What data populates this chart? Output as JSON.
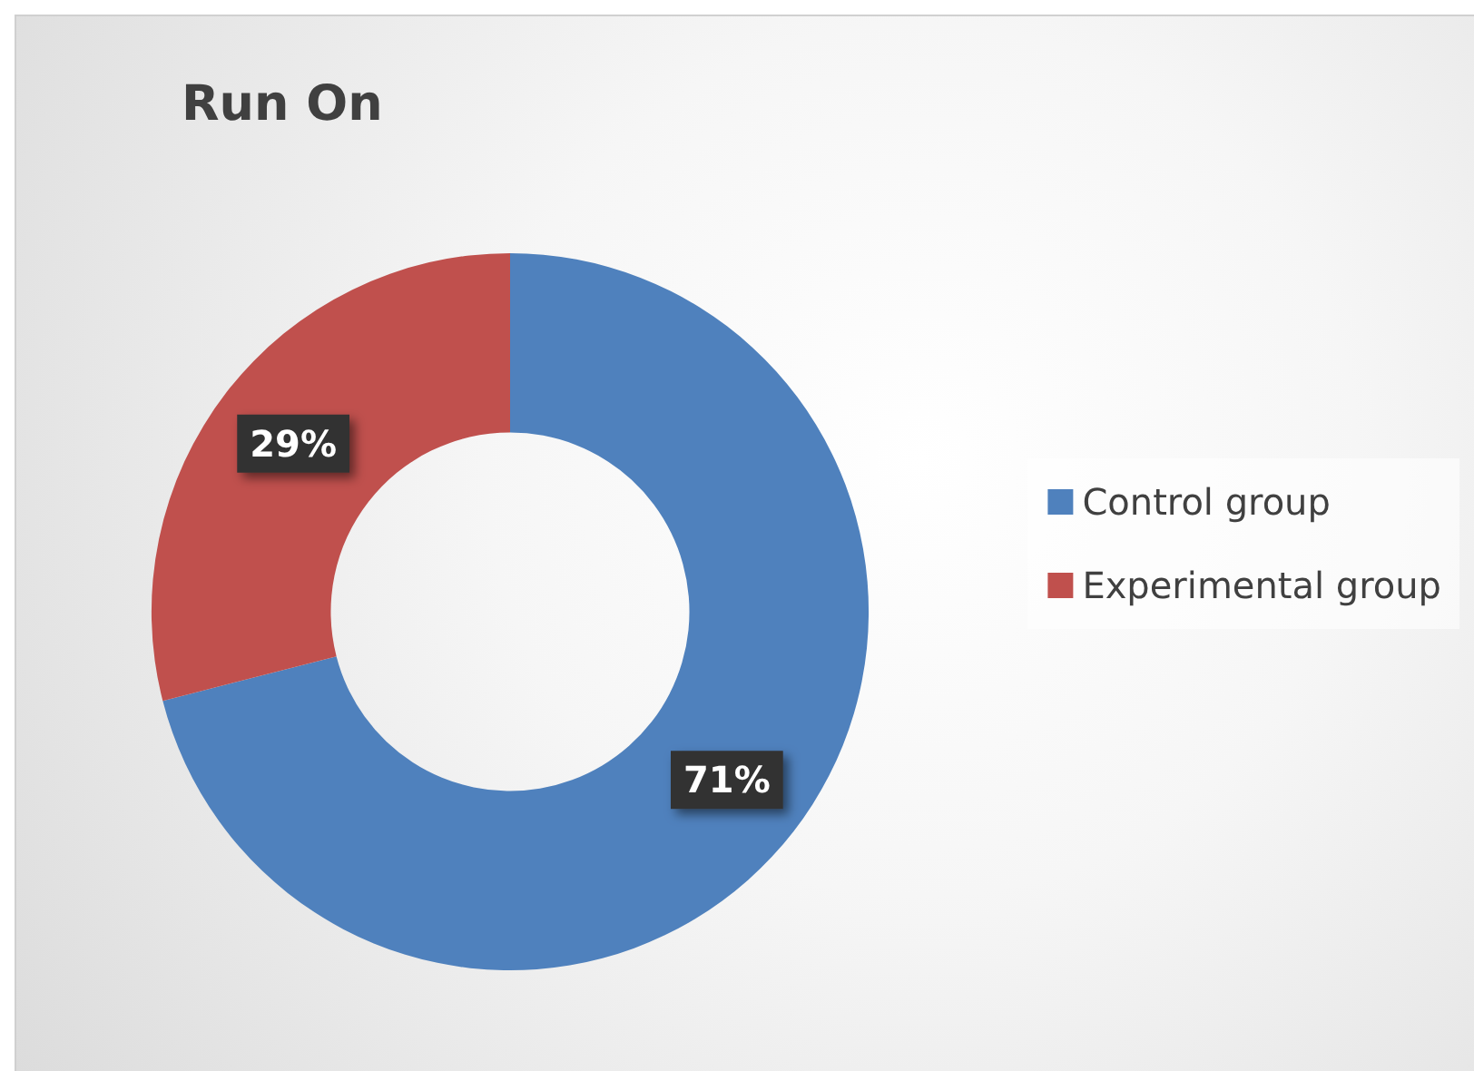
{
  "chart_data": {
    "type": "donut",
    "title": "Run On",
    "categories": [
      "Control group",
      "Experimental group"
    ],
    "values": [
      71,
      29
    ],
    "colors": [
      "#4f81bd",
      "#c0504d"
    ],
    "value_labels": [
      "71%",
      "29%"
    ],
    "legend": "right"
  }
}
